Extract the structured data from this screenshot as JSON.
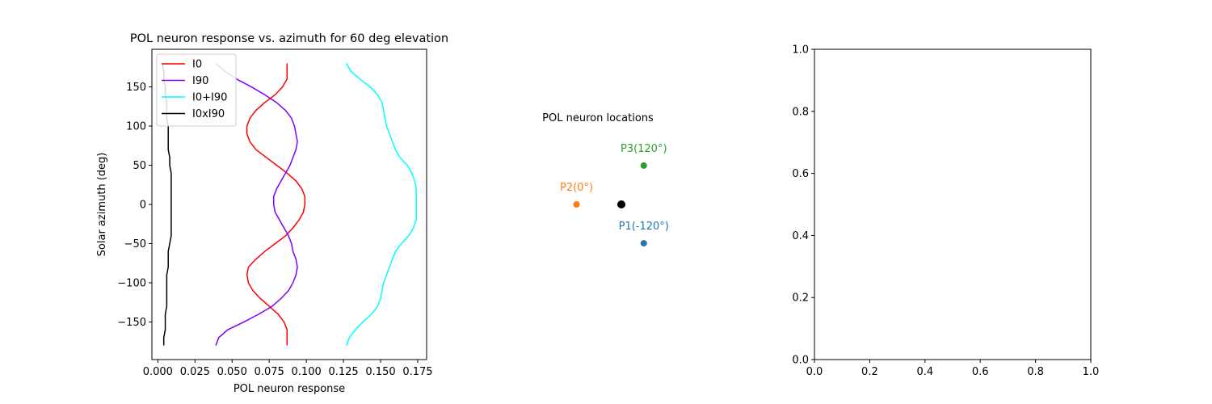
{
  "chart_data": [
    {
      "type": "line",
      "title": "POL neuron response vs. azimuth for 60 deg elevation",
      "xlabel": "POL neuron response",
      "ylabel": "Solar azimuth (deg)",
      "xlim": [
        -0.004,
        0.181
      ],
      "ylim": [
        -198,
        198
      ],
      "xticks": [
        "0.000",
        "0.025",
        "0.050",
        "0.075",
        "0.100",
        "0.125",
        "0.150",
        "0.175"
      ],
      "yticks": [
        "150",
        "100",
        "50",
        "0",
        "−50",
        "−100",
        "−150"
      ],
      "legend_position": "top-left",
      "series": [
        {
          "name": "I0",
          "color": "#ff0000",
          "points": [
            [
              0.087,
              180
            ],
            [
              0.087,
              160
            ],
            [
              0.084,
              150
            ],
            [
              0.079,
              140
            ],
            [
              0.072,
              130
            ],
            [
              0.066,
              120
            ],
            [
              0.062,
              110
            ],
            [
              0.06,
              100
            ],
            [
              0.06,
              90
            ],
            [
              0.062,
              80
            ],
            [
              0.066,
              70
            ],
            [
              0.073,
              60
            ],
            [
              0.08,
              50
            ],
            [
              0.087,
              40
            ],
            [
              0.093,
              30
            ],
            [
              0.097,
              20
            ],
            [
              0.099,
              10
            ],
            [
              0.099,
              0
            ],
            [
              0.098,
              -10
            ],
            [
              0.095,
              -20
            ],
            [
              0.091,
              -30
            ],
            [
              0.086,
              -40
            ],
            [
              0.079,
              -50
            ],
            [
              0.072,
              -60
            ],
            [
              0.066,
              -70
            ],
            [
              0.061,
              -80
            ],
            [
              0.06,
              -90
            ],
            [
              0.061,
              -100
            ],
            [
              0.064,
              -110
            ],
            [
              0.069,
              -120
            ],
            [
              0.075,
              -130
            ],
            [
              0.081,
              -140
            ],
            [
              0.085,
              -150
            ],
            [
              0.087,
              -160
            ],
            [
              0.087,
              -180
            ]
          ]
        },
        {
          "name": "I90",
          "color": "#8000ff",
          "points": [
            [
              0.039,
              180
            ],
            [
              0.045,
              170
            ],
            [
              0.053,
              160
            ],
            [
              0.063,
              150
            ],
            [
              0.072,
              140
            ],
            [
              0.08,
              130
            ],
            [
              0.086,
              120
            ],
            [
              0.09,
              110
            ],
            [
              0.092,
              100
            ],
            [
              0.093,
              90
            ],
            [
              0.094,
              80
            ],
            [
              0.093,
              70
            ],
            [
              0.091,
              60
            ],
            [
              0.089,
              50
            ],
            [
              0.086,
              40
            ],
            [
              0.083,
              30
            ],
            [
              0.08,
              20
            ],
            [
              0.078,
              10
            ],
            [
              0.078,
              0
            ],
            [
              0.079,
              -10
            ],
            [
              0.082,
              -20
            ],
            [
              0.085,
              -30
            ],
            [
              0.088,
              -40
            ],
            [
              0.09,
              -50
            ],
            [
              0.091,
              -60
            ],
            [
              0.093,
              -70
            ],
            [
              0.094,
              -80
            ],
            [
              0.093,
              -90
            ],
            [
              0.091,
              -100
            ],
            [
              0.088,
              -110
            ],
            [
              0.083,
              -120
            ],
            [
              0.077,
              -130
            ],
            [
              0.068,
              -140
            ],
            [
              0.058,
              -150
            ],
            [
              0.047,
              -160
            ],
            [
              0.041,
              -170
            ],
            [
              0.039,
              -180
            ]
          ]
        },
        {
          "name": "I0+I90",
          "color": "#00ffff",
          "points": [
            [
              0.127,
              180
            ],
            [
              0.13,
              170
            ],
            [
              0.136,
              160
            ],
            [
              0.143,
              150
            ],
            [
              0.148,
              140
            ],
            [
              0.151,
              130
            ],
            [
              0.152,
              120
            ],
            [
              0.153,
              110
            ],
            [
              0.154,
              100
            ],
            [
              0.156,
              90
            ],
            [
              0.158,
              80
            ],
            [
              0.16,
              70
            ],
            [
              0.163,
              60
            ],
            [
              0.168,
              50
            ],
            [
              0.171,
              40
            ],
            [
              0.173,
              30
            ],
            [
              0.174,
              20
            ],
            [
              0.174,
              10
            ],
            [
              0.174,
              0
            ],
            [
              0.174,
              -10
            ],
            [
              0.174,
              -20
            ],
            [
              0.172,
              -30
            ],
            [
              0.169,
              -40
            ],
            [
              0.164,
              -50
            ],
            [
              0.16,
              -60
            ],
            [
              0.158,
              -70
            ],
            [
              0.156,
              -80
            ],
            [
              0.154,
              -90
            ],
            [
              0.152,
              -100
            ],
            [
              0.151,
              -110
            ],
            [
              0.15,
              -120
            ],
            [
              0.148,
              -130
            ],
            [
              0.144,
              -140
            ],
            [
              0.138,
              -150
            ],
            [
              0.133,
              -160
            ],
            [
              0.129,
              -170
            ],
            [
              0.127,
              -180
            ]
          ]
        },
        {
          "name": "I0xI90",
          "color": "#000000",
          "points": [
            [
              0.003,
              180
            ],
            [
              0.004,
              170
            ],
            [
              0.004,
              160
            ],
            [
              0.005,
              150
            ],
            [
              0.005,
              140
            ],
            [
              0.006,
              130
            ],
            [
              0.006,
              120
            ],
            [
              0.006,
              110
            ],
            [
              0.007,
              100
            ],
            [
              0.007,
              90
            ],
            [
              0.007,
              80
            ],
            [
              0.007,
              70
            ],
            [
              0.008,
              60
            ],
            [
              0.008,
              50
            ],
            [
              0.009,
              40
            ],
            [
              0.009,
              30
            ],
            [
              0.009,
              20
            ],
            [
              0.009,
              10
            ],
            [
              0.009,
              0
            ],
            [
              0.009,
              -10
            ],
            [
              0.009,
              -20
            ],
            [
              0.009,
              -30
            ],
            [
              0.009,
              -40
            ],
            [
              0.008,
              -50
            ],
            [
              0.007,
              -60
            ],
            [
              0.007,
              -70
            ],
            [
              0.007,
              -80
            ],
            [
              0.006,
              -90
            ],
            [
              0.006,
              -100
            ],
            [
              0.006,
              -110
            ],
            [
              0.006,
              -120
            ],
            [
              0.006,
              -130
            ],
            [
              0.005,
              -140
            ],
            [
              0.005,
              -150
            ],
            [
              0.005,
              -160
            ],
            [
              0.004,
              -170
            ],
            [
              0.004,
              -180
            ]
          ]
        }
      ]
    },
    {
      "type": "scatter",
      "title": "POL neuron locations",
      "axis_visible": false,
      "xlim": [
        -1.5,
        1.5
      ],
      "ylim": [
        -1.5,
        1.5
      ],
      "points": [
        {
          "label": "P1(-120°)",
          "x": 0.5,
          "y": -0.866,
          "color": "#1f77b4"
        },
        {
          "label": "P2(0°)",
          "x": -1.0,
          "y": 0.0,
          "color": "#ff7f0e"
        },
        {
          "label": "P3(120°)",
          "x": 0.5,
          "y": 0.866,
          "color": "#2ca02c"
        },
        {
          "label": "",
          "x": 0.0,
          "y": 0.0,
          "color": "#000000"
        }
      ]
    },
    {
      "type": "line",
      "title": "",
      "xlim": [
        0.0,
        1.0
      ],
      "ylim": [
        0.0,
        1.0
      ],
      "xticks": [
        "0.0",
        "0.2",
        "0.4",
        "0.6",
        "0.8",
        "1.0"
      ],
      "yticks": [
        "0.0",
        "0.2",
        "0.4",
        "0.6",
        "0.8",
        "1.0"
      ],
      "series": []
    }
  ]
}
